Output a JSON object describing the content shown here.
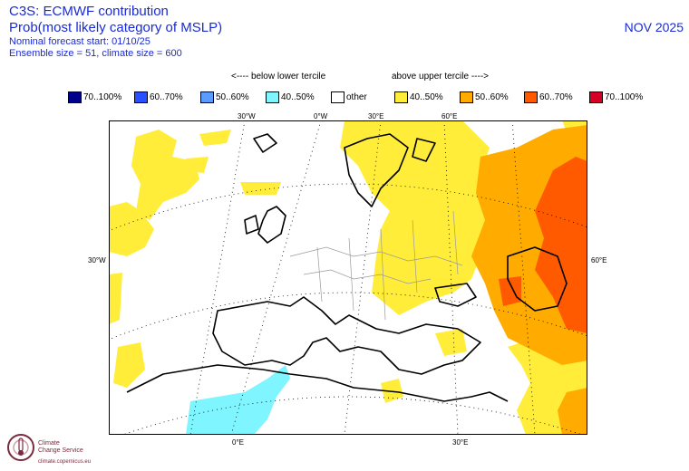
{
  "header": {
    "line1": "C3S: ECMWF contribution",
    "line2": "Prob(most likely category of MSLP)",
    "line3": "Nominal forecast start: 01/10/25",
    "line4": "Ensemble size = 51, climate size = 600",
    "month": "NOV 2025"
  },
  "tercile": {
    "below": "<---- below lower tercile",
    "above": "above upper tercile ---->"
  },
  "legend": [
    {
      "label": "70..100%",
      "color": "#00008b"
    },
    {
      "label": "60..70%",
      "color": "#2850ff"
    },
    {
      "label": "50..60%",
      "color": "#5a9bff"
    },
    {
      "label": "40..50%",
      "color": "#7ff5ff"
    },
    {
      "label": "other",
      "color": "#ffffff"
    },
    {
      "label": "40..50%",
      "color": "#ffed3a"
    },
    {
      "label": "50..60%",
      "color": "#ffab00"
    },
    {
      "label": "60..70%",
      "color": "#ff5a00"
    },
    {
      "label": "70..100%",
      "color": "#d40026"
    }
  ],
  "map": {
    "top_lon_labels": [
      "30°W",
      "0°W",
      "30°E",
      "60°E"
    ],
    "bottom_lon_labels": [
      "0°E",
      "30°E"
    ],
    "left_lat_label": "30°W",
    "right_lat_label": "60°E"
  },
  "logo": {
    "line1": "Climate",
    "line2": "Change Service",
    "url": "climate.copernicus.eu"
  }
}
